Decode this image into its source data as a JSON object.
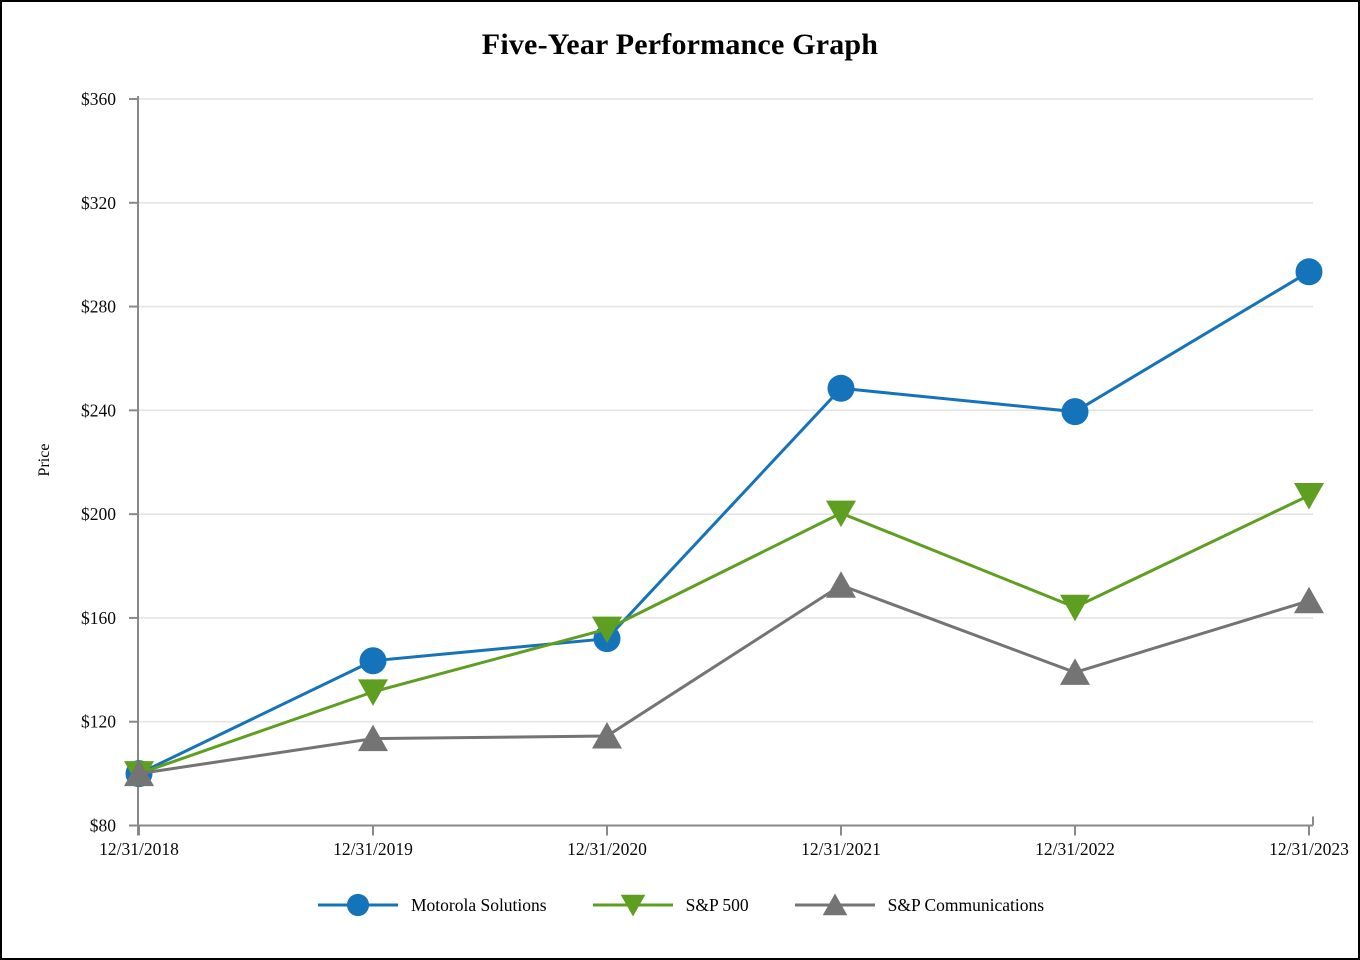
{
  "chart_data": {
    "type": "line",
    "title": "Five-Year Performance Graph",
    "ylabel": "Price",
    "xlabel": "",
    "categories": [
      "12/31/2018",
      "12/31/2019",
      "12/31/2020",
      "12/31/2021",
      "12/31/2022",
      "12/31/2023"
    ],
    "series": [
      {
        "name": "Motorola Solutions",
        "marker": "circle",
        "color": "#1573ba",
        "values": [
          100,
          143.5,
          152.0,
          248.5,
          239.5,
          293.4
        ]
      },
      {
        "name": "S&P 500",
        "marker": "triangle-down",
        "color": "#5e9e20",
        "values": [
          100,
          131.5,
          155.7,
          200.4,
          164.1,
          207.2
        ]
      },
      {
        "name": "S&P Communications",
        "marker": "triangle-up",
        "color": "#747474",
        "values": [
          100,
          113.5,
          114.5,
          172.6,
          139.0,
          166.6
        ]
      }
    ],
    "ylim": [
      80,
      360
    ],
    "ytick_values": [
      80,
      120,
      160,
      200,
      240,
      280,
      320,
      360
    ],
    "ytick_labels": [
      "$80",
      "$120",
      "$160",
      "$200",
      "$240",
      "$280",
      "$320",
      "$360"
    ],
    "grid": "horizontal",
    "legend_position": "bottom",
    "styles": {
      "axis_color": "#898989",
      "grid_color": "#e4e4e4",
      "text_color": "#000000",
      "line_width": 3
    }
  }
}
